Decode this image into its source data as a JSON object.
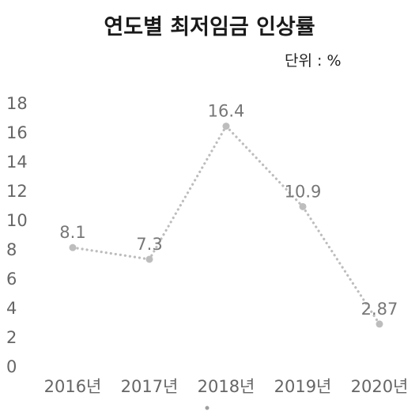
{
  "chart_data": {
    "type": "line",
    "title": "연도별 최저임금 인상률",
    "unit_label": "단위 : %",
    "categories": [
      "2016년",
      "2017년",
      "2018년",
      "2019년",
      "2020년"
    ],
    "series": [
      {
        "values": [
          8.1,
          7.3,
          16.4,
          10.9,
          2.87
        ],
        "labels": [
          "8.1",
          "7.3",
          "16.4",
          "10.9",
          "2.87"
        ]
      }
    ],
    "y_ticks": [
      0,
      2,
      4,
      6,
      8,
      10,
      12,
      14,
      16,
      18
    ],
    "ylim": [
      0,
      18
    ],
    "grid": false,
    "line_style": "dotted",
    "line_color": "#bdbdbd",
    "marker_color": "#bdbdbd",
    "text_color": "#666666"
  }
}
